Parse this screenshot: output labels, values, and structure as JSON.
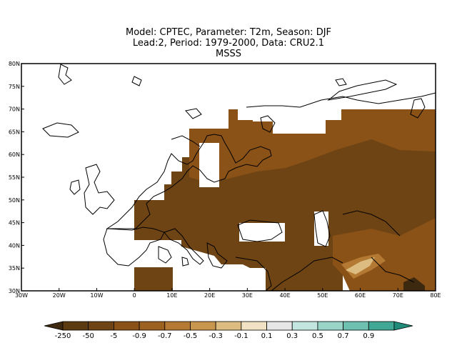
{
  "title": {
    "line1": "Model: CPTEC, Parameter: T2m, Season: DJF",
    "line2": "Lead:2, Period: 1979-2000, Data: CRU2.1",
    "line3": "MSSS"
  },
  "map": {
    "lon_range": [
      -30,
      80
    ],
    "lat_range": [
      30,
      80
    ],
    "lon_ticks": [
      "30W",
      "20W",
      "10W",
      "0",
      "10E",
      "20E",
      "30E",
      "40E",
      "50E",
      "60E",
      "70E",
      "80E"
    ],
    "lat_ticks": [
      "30N",
      "35N",
      "40N",
      "45N",
      "50N",
      "55N",
      "60N",
      "65N",
      "70N",
      "75N",
      "80N"
    ]
  },
  "colorbar": {
    "labels": [
      "-250",
      "-50",
      "-5",
      "-0.9",
      "-0.7",
      "-0.5",
      "-0.3",
      "-0.1",
      "0.1",
      "0.3",
      "0.5",
      "0.7",
      "0.9"
    ],
    "colors": [
      "#3d2810",
      "#5c3a12",
      "#6e4414",
      "#8a5216",
      "#9e6220",
      "#b47a34",
      "#c8964c",
      "#dcbc80",
      "#f0e2c2",
      "#e6e6e6",
      "#c4e6e0",
      "#98d4c8",
      "#6ec0b0",
      "#40a894",
      "#1e8c78"
    ]
  }
}
